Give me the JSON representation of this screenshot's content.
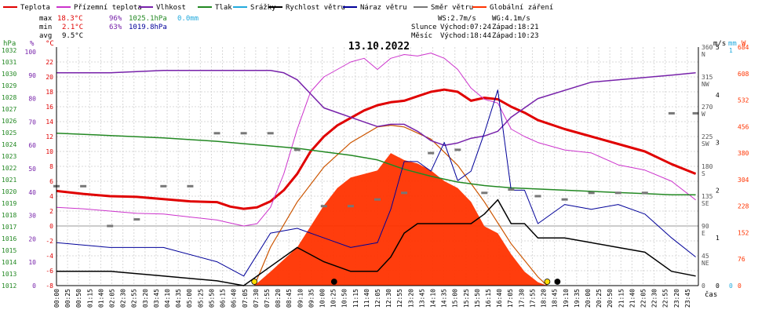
{
  "chart_data": {
    "type": "line",
    "title": "13.10.2022",
    "legend": [
      {
        "label": "Teplota",
        "color": "#e00000"
      },
      {
        "label": "Přízemní teplota",
        "color": "#cc33cc"
      },
      {
        "label": "Vlhkost",
        "color": "#7722aa"
      },
      {
        "label": "Tlak",
        "color": "#228822"
      },
      {
        "label": "Srážky",
        "color": "#22aadd"
      },
      {
        "label": "Rychlost větru",
        "color": "#000000"
      },
      {
        "label": "Náraz větru",
        "color": "#000099"
      },
      {
        "label": "Směr větru",
        "color": "#777777"
      },
      {
        "label": "Globální záření",
        "color": "#ff3300"
      }
    ],
    "stats": {
      "max_label": "max",
      "min_label": "min",
      "avg_label": "avg",
      "temp_max": "18.3°C",
      "hum_max": "96%",
      "press_max": "1025.1hPa",
      "rain_total": "0.0mm",
      "temp_min": "2.1°C",
      "hum_min": "63%",
      "press_min": "1019.8hPa",
      "temp_avg": "9.5°C",
      "ws": "WS:2.7m/s",
      "wg": "WG:4.1m/s",
      "sun_label": "Slunce",
      "sunrise": "Východ:07:24",
      "sunset": "Západ:18:21",
      "moon_label": "Měsíc",
      "moonrise": "Východ:18:44",
      "moonset": "Západ:10:23"
    },
    "axes": {
      "hpa_label": "hPa",
      "pct_label": "%",
      "temp_label": "°C",
      "ms_label": "m/s",
      "mm_label": "mm",
      "w_label": "W",
      "hpa_ticks": [
        "1032",
        "1031",
        "1030",
        "1029",
        "1028",
        "1027",
        "1026",
        "1025",
        "1024",
        "1023",
        "1022",
        "1021",
        "1020",
        "1019",
        "1018",
        "1017",
        "1016",
        "1015",
        "1014",
        "1013",
        "1012"
      ],
      "pct_ticks": [
        "100",
        "90",
        "80",
        "70",
        "60",
        "50",
        "40",
        "30",
        "20",
        "10",
        "0"
      ],
      "temp_ticks": [
        "22",
        "20",
        "18",
        "16",
        "14",
        "12",
        "10",
        "8",
        "6",
        "4",
        "2",
        "0",
        "-2",
        "-4",
        "-6",
        "-8"
      ],
      "dir_ticks": [
        {
          "deg": "360",
          "c": "N"
        },
        {
          "deg": "315",
          "c": "NW"
        },
        {
          "deg": "270",
          "c": "W"
        },
        {
          "deg": "225",
          "c": "SW"
        },
        {
          "deg": "180",
          "c": "S"
        },
        {
          "deg": "135",
          "c": "SE"
        },
        {
          "deg": "90",
          "c": "E"
        },
        {
          "deg": "45",
          "c": "NE"
        },
        {
          "deg": "0",
          "c": ""
        }
      ],
      "ms_ticks": [
        "5",
        "4",
        "3",
        "2",
        "1",
        "0"
      ],
      "mm_ticks": [
        "1",
        "0"
      ],
      "w_ticks": [
        "684",
        "608",
        "532",
        "456",
        "380",
        "304",
        "228",
        "152",
        "76",
        "0"
      ],
      "x_ticks": [
        "00:00",
        "00:25",
        "00:50",
        "01:15",
        "01:40",
        "02:05",
        "02:30",
        "02:55",
        "03:20",
        "03:45",
        "04:10",
        "04:35",
        "05:00",
        "05:25",
        "05:50",
        "06:15",
        "06:40",
        "07:05",
        "07:30",
        "07:55",
        "08:20",
        "08:45",
        "09:10",
        "09:35",
        "10:00",
        "10:25",
        "10:50",
        "11:15",
        "11:40",
        "12:05",
        "12:30",
        "12:55",
        "13:20",
        "13:45",
        "14:10",
        "14:35",
        "15:00",
        "15:25",
        "15:50",
        "16:15",
        "16:40",
        "17:05",
        "17:30",
        "17:55",
        "18:20",
        "18:45",
        "19:10",
        "19:35",
        "20:00",
        "20:25",
        "20:50",
        "21:15",
        "21:40",
        "22:05",
        "22:30",
        "22:55",
        "23:20",
        "23:45"
      ],
      "x_unit": "čas"
    },
    "series": [
      {
        "name": "Teplota",
        "x_hours": [
          0,
          1,
          2,
          3,
          4,
          5,
          6,
          6.5,
          7,
          7.5,
          8,
          8.5,
          9,
          9.5,
          10,
          10.5,
          11,
          11.5,
          12,
          12.5,
          13,
          13.5,
          14,
          14.5,
          15,
          15.5,
          16,
          16.5,
          17,
          17.5,
          18,
          19,
          20,
          21,
          22,
          23,
          23.9
        ],
        "values": [
          4.7,
          4.3,
          4.0,
          3.9,
          3.6,
          3.3,
          3.2,
          2.6,
          2.3,
          2.5,
          3.3,
          4.8,
          7.0,
          10.0,
          12.0,
          13.5,
          14.5,
          15.5,
          16.2,
          16.6,
          16.8,
          17.4,
          18.0,
          18.3,
          18.0,
          16.8,
          17.2,
          17.0,
          16.0,
          15.2,
          14.2,
          13.0,
          12.0,
          11.0,
          10.0,
          8.3,
          7.0
        ]
      },
      {
        "name": "Přízemní teplota",
        "x_hours": [
          0,
          1,
          2,
          3,
          4,
          5,
          6,
          6.5,
          7,
          7.5,
          8,
          8.5,
          9,
          9.5,
          10,
          10.5,
          11,
          11.5,
          12,
          12.5,
          13,
          13.5,
          14,
          14.5,
          15,
          15.5,
          16,
          16.5,
          17,
          17.5,
          18,
          19,
          20,
          21,
          22,
          23,
          23.9
        ],
        "values": [
          2.5,
          2.3,
          2.0,
          1.7,
          1.6,
          1.2,
          0.8,
          0.4,
          0.0,
          0.3,
          2.5,
          7.0,
          13.0,
          18.0,
          20.0,
          21.0,
          22.0,
          22.5,
          21.0,
          22.5,
          23.0,
          22.8,
          23.2,
          22.5,
          21.0,
          18.5,
          17.0,
          16.5,
          13.0,
          12.0,
          11.2,
          10.2,
          9.8,
          8.2,
          7.5,
          6.0,
          3.5
        ]
      },
      {
        "name": "Vlhkost",
        "unit": "%",
        "x_hours": [
          0,
          2,
          4,
          6,
          7,
          8,
          8.5,
          9,
          9.5,
          10,
          10.5,
          11,
          11.5,
          12,
          12.5,
          13,
          13.5,
          14,
          14.5,
          15,
          15.5,
          16,
          16.5,
          17,
          18,
          20,
          22,
          23,
          23.9
        ],
        "values": [
          91,
          91,
          92,
          92,
          92,
          92,
          91,
          88,
          82,
          76,
          74,
          72,
          70,
          68,
          69,
          69,
          66,
          62,
          60,
          61,
          63,
          64,
          66,
          72,
          80,
          87,
          89,
          90,
          91
        ]
      },
      {
        "name": "Tlak",
        "unit": "hPa",
        "x_hours": [
          0,
          2,
          4,
          6,
          7,
          8,
          9,
          10,
          11,
          12,
          13,
          14,
          15,
          16,
          17,
          18,
          19,
          20,
          21,
          22,
          23,
          23.9
        ],
        "values": [
          1025.1,
          1024.9,
          1024.7,
          1024.4,
          1024.2,
          1024.0,
          1023.8,
          1023.5,
          1023.2,
          1022.8,
          1022.0,
          1021.4,
          1020.9,
          1020.6,
          1020.4,
          1020.3,
          1020.2,
          1020.1,
          1020.0,
          1019.9,
          1019.8,
          1019.8
        ]
      },
      {
        "name": "Rychlost větru",
        "unit": "m/s",
        "x_hours": [
          0,
          2,
          4,
          6,
          7,
          8,
          9,
          10,
          11,
          12,
          12.5,
          13,
          13.5,
          14,
          14.5,
          15,
          15.5,
          16,
          16.5,
          17,
          17.5,
          18,
          19,
          20,
          21,
          22,
          23,
          23.9
        ],
        "values": [
          0.3,
          0.3,
          0.2,
          0.1,
          0.0,
          0.4,
          0.8,
          0.5,
          0.3,
          0.3,
          0.6,
          1.1,
          1.3,
          1.3,
          1.3,
          1.3,
          1.3,
          1.5,
          1.8,
          1.3,
          1.3,
          1.0,
          1.0,
          0.9,
          0.8,
          0.7,
          0.3,
          0.2
        ]
      },
      {
        "name": "Náraz větru",
        "unit": "m/s",
        "x_hours": [
          0,
          2,
          4,
          6,
          7,
          8,
          9,
          10,
          11,
          12,
          12.5,
          13,
          13.5,
          14,
          14.5,
          15,
          15.5,
          16,
          16.5,
          17,
          17.5,
          18,
          19,
          20,
          21,
          22,
          23,
          23.9
        ],
        "values": [
          0.9,
          0.8,
          0.8,
          0.5,
          0.2,
          1.1,
          1.2,
          1.0,
          0.8,
          0.9,
          1.6,
          2.6,
          2.6,
          2.4,
          3.0,
          2.2,
          2.4,
          3.2,
          4.1,
          2.0,
          2.0,
          1.3,
          1.7,
          1.6,
          1.7,
          1.5,
          1.0,
          0.6
        ]
      },
      {
        "name": "Globální záření",
        "unit": "W",
        "x_hours": [
          7.4,
          8,
          9,
          10,
          10.5,
          11,
          11.5,
          12,
          12.5,
          13,
          13.5,
          14,
          14.5,
          15,
          15.5,
          16,
          16.5,
          17,
          17.5,
          18,
          18.35
        ],
        "values": [
          0,
          40,
          110,
          230,
          280,
          310,
          320,
          330,
          380,
          360,
          350,
          330,
          300,
          280,
          240,
          170,
          150,
          90,
          40,
          10,
          0
        ]
      },
      {
        "name": "Globální záření max",
        "unit": "W",
        "x_hours": [
          7.4,
          8,
          9,
          10,
          11,
          12,
          12.5,
          13,
          14,
          15,
          16,
          17,
          18,
          18.35
        ],
        "values": [
          0,
          110,
          240,
          340,
          410,
          455,
          460,
          455,
          420,
          345,
          240,
          120,
          25,
          0
        ]
      }
    ],
    "wind_direction_samples": {
      "x_hours": [
        0,
        1,
        2,
        3,
        4,
        5,
        6,
        7,
        8,
        9,
        10,
        11,
        12,
        13,
        14,
        15,
        16,
        17,
        18,
        19,
        20,
        21,
        22,
        23,
        23.9
      ],
      "values": [
        150,
        150,
        90,
        100,
        150,
        150,
        230,
        230,
        230,
        205,
        120,
        120,
        130,
        140,
        200,
        205,
        140,
        145,
        135,
        130,
        140,
        140,
        140,
        260,
        260
      ]
    },
    "ylim_temp": [
      -8,
      24
    ],
    "ylim_hpa": [
      1012,
      1032.5
    ],
    "ylim_pct": [
      0,
      102
    ],
    "ylim_ms": [
      0,
      5
    ],
    "ylim_w": [
      0,
      684
    ],
    "ylim_dir": [
      0,
      360
    ],
    "x_range_hours": [
      0,
      24
    ]
  }
}
